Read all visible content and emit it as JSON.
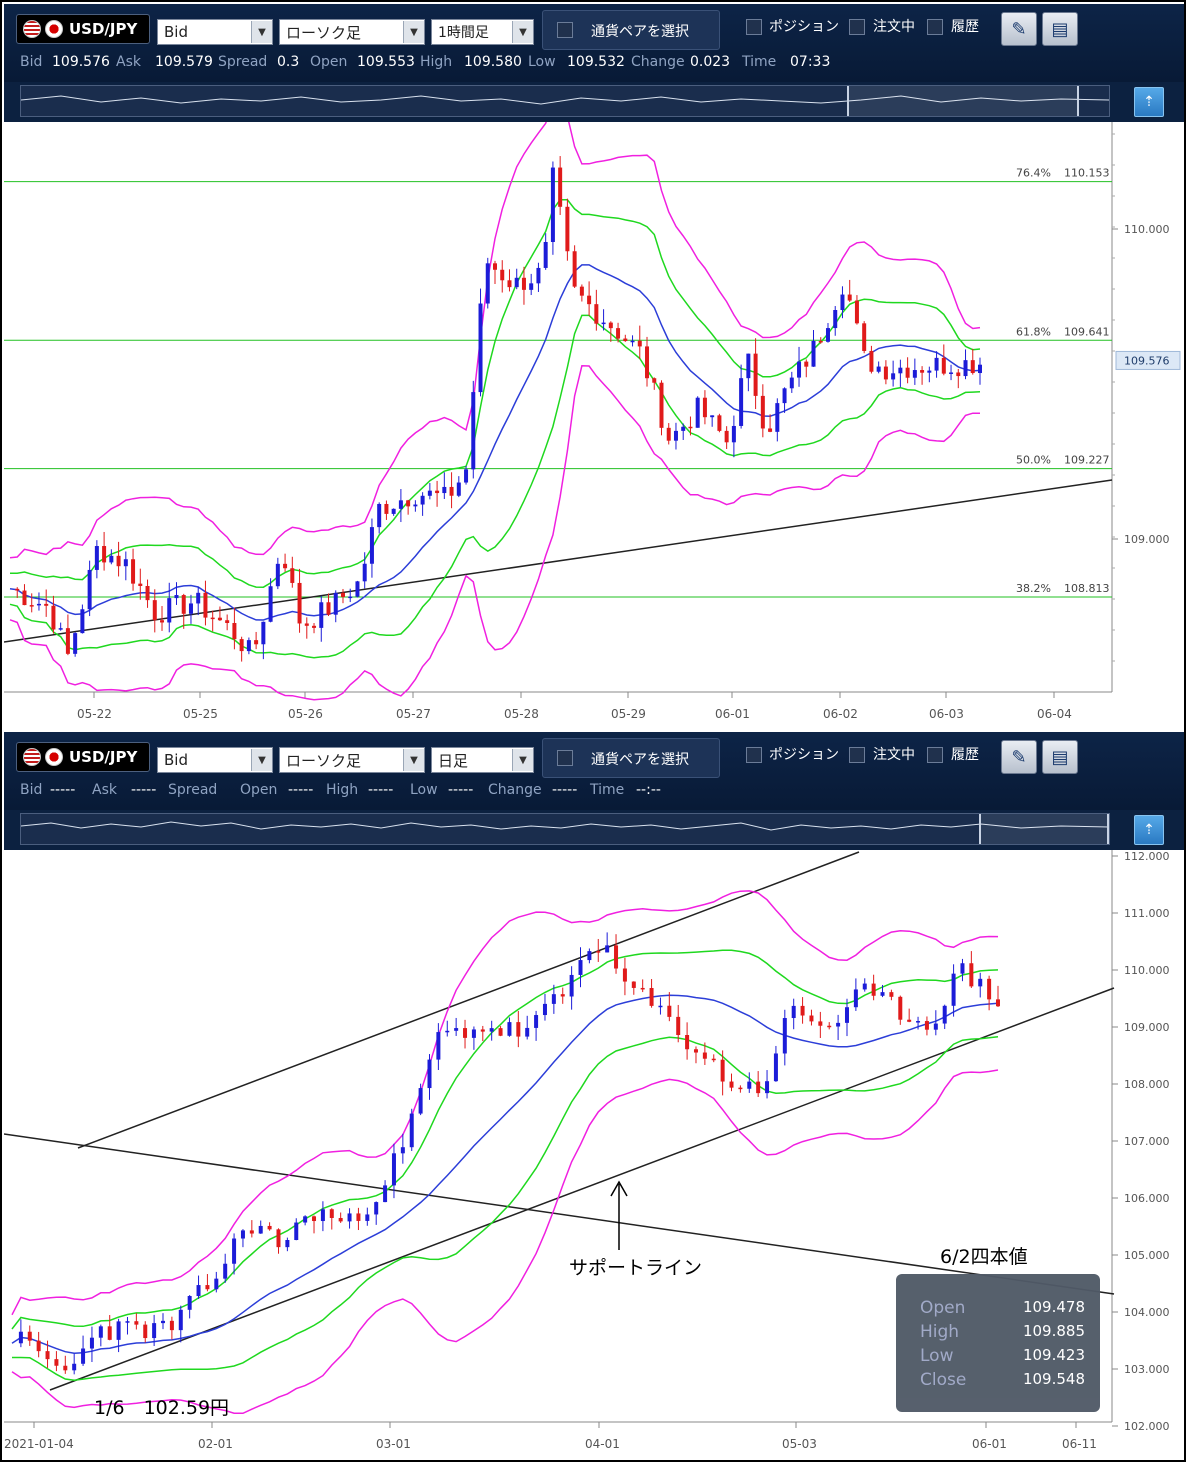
{
  "panels": [
    {
      "pair_label": "USD/JPY",
      "price_type": "Bid",
      "chart_type": "ローソク足",
      "timeframe": "1時間足",
      "select_pair_label": "通貨ペアを選択",
      "position_label": "ポジション",
      "orders_label": "注文中",
      "history_label": "履歴",
      "quotes": [
        {
          "label": "Bid",
          "value": "109.576"
        },
        {
          "label": "Ask",
          "value": "109.579"
        },
        {
          "label": "Spread",
          "value": "0.3"
        },
        {
          "label": "Open",
          "value": "109.553"
        },
        {
          "label": "High",
          "value": "109.580"
        },
        {
          "label": "Low",
          "value": "109.532"
        },
        {
          "label": "Change",
          "value": "0.023"
        },
        {
          "label": "Time",
          "value": "07:33"
        }
      ],
      "y_ticks": [
        "110.000",
        "109.000"
      ],
      "x_ticks": [
        "05-22",
        "05-25",
        "05-26",
        "05-27",
        "05-28",
        "05-29",
        "06-01",
        "06-02",
        "06-03",
        "06-04"
      ],
      "fib_levels": [
        {
          "pct": "76.4%",
          "price": "110.153"
        },
        {
          "pct": "61.8%",
          "price": "109.641"
        },
        {
          "pct": "50.0%",
          "price": "109.227"
        },
        {
          "pct": "38.2%",
          "price": "108.813"
        }
      ],
      "current_price": "109.576"
    },
    {
      "pair_label": "USD/JPY",
      "price_type": "Bid",
      "chart_type": "ローソク足",
      "timeframe": "日足",
      "select_pair_label": "通貨ペアを選択",
      "position_label": "ポジション",
      "orders_label": "注文中",
      "history_label": "履歴",
      "quotes": [
        {
          "label": "Bid",
          "value": "-----"
        },
        {
          "label": "Ask",
          "value": "-----"
        },
        {
          "label": "Spread",
          "value": ""
        },
        {
          "label": "Open",
          "value": "-----"
        },
        {
          "label": "High",
          "value": "-----"
        },
        {
          "label": "Low",
          "value": "-----"
        },
        {
          "label": "Change",
          "value": "-----"
        },
        {
          "label": "Time",
          "value": "--:--"
        }
      ],
      "y_ticks": [
        "112.000",
        "111.000",
        "110.000",
        "109.000",
        "108.000",
        "107.000",
        "106.000",
        "105.000",
        "104.000",
        "103.000",
        "102.000"
      ],
      "x_ticks": [
        "2021-01-04",
        "02-01",
        "03-01",
        "04-01",
        "05-03",
        "06-01",
        "06-11"
      ],
      "annotations": {
        "support_label": "サポートライン",
        "low_label": "1/6　102.59円",
        "ohlc_title": "6/2四本値"
      },
      "ohlc": [
        {
          "label": "Open",
          "value": "109.478"
        },
        {
          "label": "High",
          "value": "109.885"
        },
        {
          "label": "Low",
          "value": "109.423"
        },
        {
          "label": "Close",
          "value": "109.548"
        }
      ]
    }
  ],
  "colors": {
    "bull": "#1c1cd8",
    "bear": "#e01a1a",
    "ma_blue": "#2c3ed8",
    "band_green": "#1fd81f",
    "band_magenta": "#f020e0",
    "fib_line": "#22c122",
    "trend_line": "#222222",
    "toolbar_bg": "#0d2447"
  },
  "icons": {
    "dropdown": "chevron-down-icon",
    "chart_settings": "chart-settings-icon",
    "layout": "window-layout-icon",
    "navigator_toggle": "navigator-toggle-icon"
  }
}
